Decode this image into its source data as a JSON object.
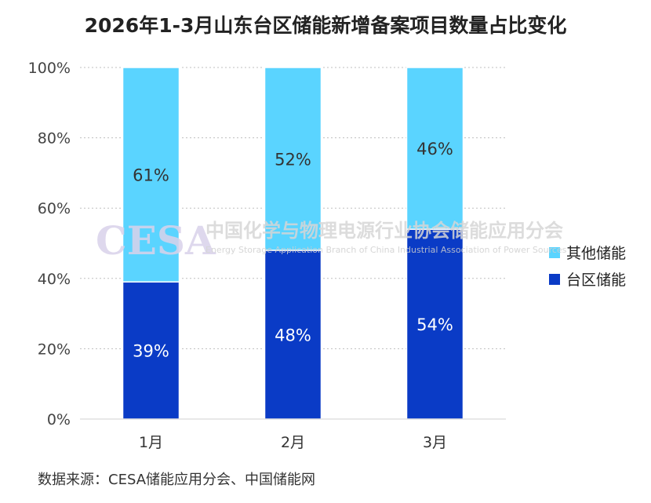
{
  "chart_data": {
    "type": "bar",
    "stacked": true,
    "title": "2026年1-3月山东台区储能新增备案项目数量占比变化",
    "categories": [
      "1月",
      "2月",
      "3月"
    ],
    "series": [
      {
        "name": "台区储能",
        "values": [
          39,
          48,
          54
        ],
        "labels": [
          "39%",
          "48%",
          "54%"
        ],
        "color": "#0a3bc6",
        "label_color": "#ffffff"
      },
      {
        "name": "其他储能",
        "values": [
          61,
          52,
          46
        ],
        "labels": [
          "61%",
          "52%",
          "46%"
        ],
        "color": "#5ad4ff",
        "label_color": "#333333"
      }
    ],
    "y_ticks": [
      "0%",
      "20%",
      "40%",
      "60%",
      "80%",
      "100%"
    ],
    "ylim": [
      0,
      100
    ],
    "grid": true,
    "legend_position": "right"
  },
  "source_text": "数据来源：CESA储能应用分会、中国储能网",
  "watermark": {
    "logo": "CESA",
    "name_cn": "中国化学与物理电源行业协会储能应用分会",
    "name_en": "Energy Storage Application Branch of China Industrial Association of Power Sources"
  }
}
